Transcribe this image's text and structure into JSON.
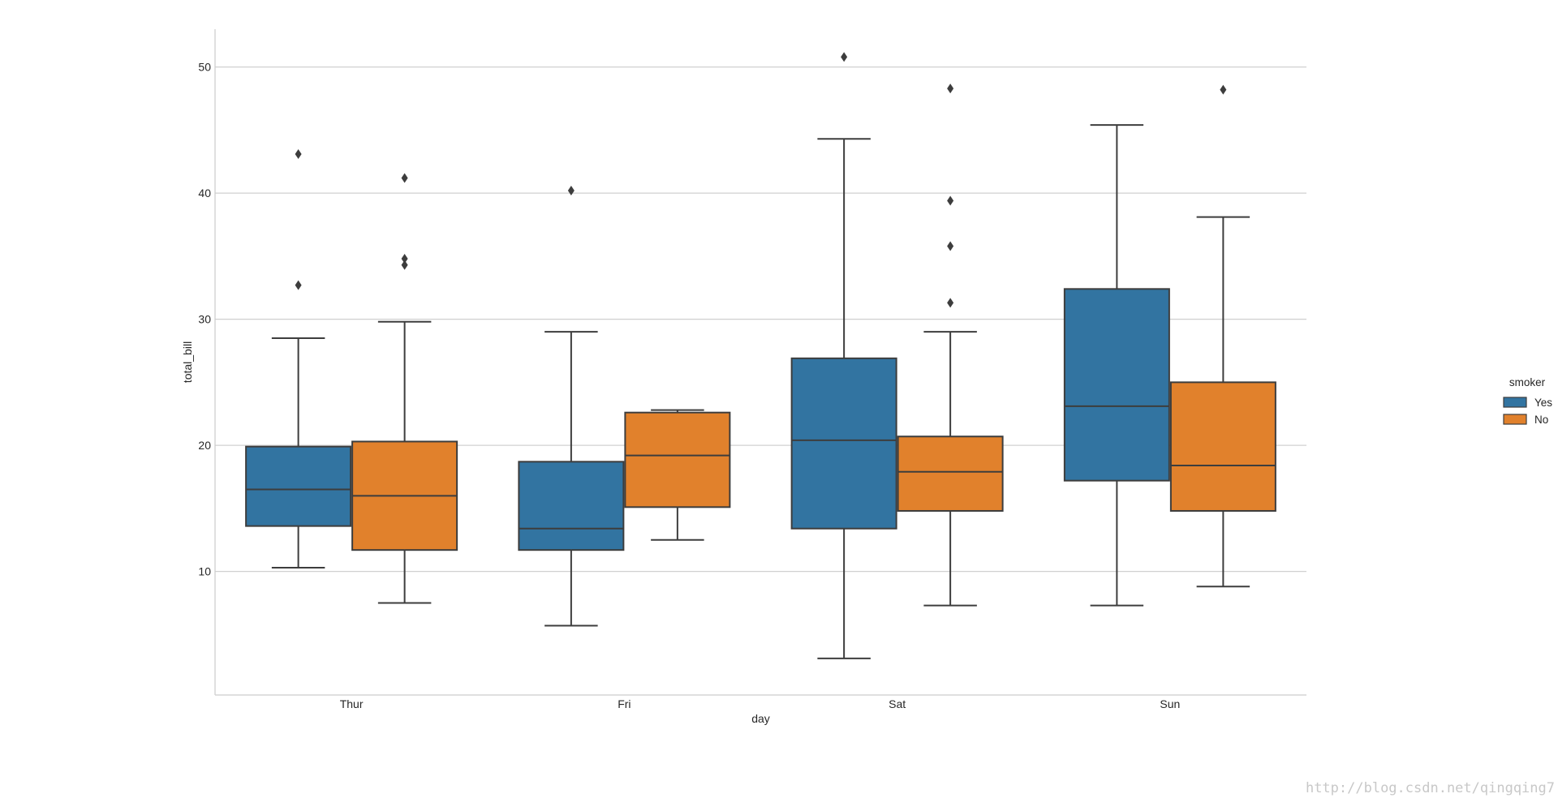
{
  "chart_data": {
    "type": "box",
    "title": "",
    "xlabel": "day",
    "ylabel": "total_bill",
    "categories": [
      "Thur",
      "Fri",
      "Sat",
      "Sun"
    ],
    "ylim": [
      0.2,
      53.0
    ],
    "yticks": [
      "10",
      "20",
      "30",
      "40",
      "50"
    ],
    "grid": "horizontal",
    "legend": {
      "title": "smoker",
      "placement": "right",
      "entries": [
        {
          "label": "Yes",
          "color": "#3274a1"
        },
        {
          "label": "No",
          "color": "#e1812c"
        }
      ]
    },
    "series": [
      {
        "name": "Yes",
        "color": "#3274a1",
        "boxes": [
          {
            "category": "Thur",
            "whisker_low": 10.3,
            "q1": 13.6,
            "median": 16.5,
            "q3": 19.9,
            "whisker_high": 28.5,
            "outliers": [
              32.7,
              43.1
            ]
          },
          {
            "category": "Fri",
            "whisker_low": 5.7,
            "q1": 11.7,
            "median": 13.4,
            "q3": 18.7,
            "whisker_high": 29.0,
            "outliers": [
              40.2
            ]
          },
          {
            "category": "Sat",
            "whisker_low": 3.1,
            "q1": 13.4,
            "median": 20.4,
            "q3": 26.9,
            "whisker_high": 44.3,
            "outliers": [
              50.8
            ]
          },
          {
            "category": "Sun",
            "whisker_low": 7.3,
            "q1": 17.2,
            "median": 23.1,
            "q3": 32.4,
            "whisker_high": 45.4,
            "outliers": []
          }
        ]
      },
      {
        "name": "No",
        "color": "#e1812c",
        "boxes": [
          {
            "category": "Thur",
            "whisker_low": 7.5,
            "q1": 11.7,
            "median": 16.0,
            "q3": 20.3,
            "whisker_high": 29.8,
            "outliers": [
              34.3,
              34.8,
              41.2
            ]
          },
          {
            "category": "Fri",
            "whisker_low": 12.5,
            "q1": 15.1,
            "median": 19.2,
            "q3": 22.6,
            "whisker_high": 22.8,
            "outliers": []
          },
          {
            "category": "Sat",
            "whisker_low": 7.3,
            "q1": 14.8,
            "median": 17.9,
            "q3": 20.7,
            "whisker_high": 29.0,
            "outliers": [
              31.3,
              35.8,
              39.4,
              48.3
            ]
          },
          {
            "category": "Sun",
            "whisker_low": 8.8,
            "q1": 14.8,
            "median": 18.4,
            "q3": 25.0,
            "whisker_high": 38.1,
            "outliers": [
              48.2
            ]
          }
        ]
      }
    ]
  },
  "watermark": "http://blog.csdn.net/qingqing7"
}
